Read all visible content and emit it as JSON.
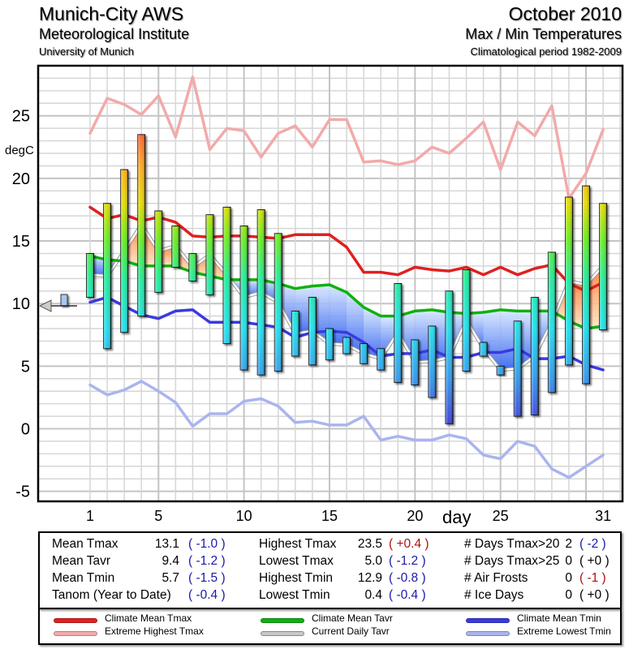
{
  "header": {
    "station": "Munich-City AWS",
    "institute": "Meteorological Institute",
    "university": "University of Munich",
    "month": "October 2010",
    "subtitle": "Max / Min Temperatures",
    "period": "Climatological period 1982-2009"
  },
  "chart_data": {
    "type": "bar",
    "title": "Max / Min Temperatures",
    "xlabel": "day",
    "ylabel": "degC",
    "xlim": [
      -1.5,
      32
    ],
    "ylim": [
      -5.8,
      29
    ],
    "x_ticks": [
      1,
      5,
      10,
      15,
      20,
      25,
      31
    ],
    "y_ticks": [
      -5,
      0,
      5,
      10,
      15,
      20,
      25
    ],
    "grid": true,
    "days": [
      1,
      2,
      3,
      4,
      5,
      6,
      7,
      8,
      9,
      10,
      11,
      12,
      13,
      14,
      15,
      16,
      17,
      18,
      19,
      20,
      21,
      22,
      23,
      24,
      25,
      26,
      27,
      28,
      29,
      30,
      31
    ],
    "daily_tmax": [
      14.0,
      18.0,
      20.7,
      23.5,
      17.4,
      16.2,
      14.0,
      17.1,
      17.7,
      16.2,
      17.5,
      15.6,
      9.4,
      10.5,
      8.0,
      7.3,
      6.8,
      6.4,
      11.6,
      7.1,
      8.2,
      11.0,
      12.7,
      6.9,
      5.0,
      8.6,
      10.5,
      14.1,
      18.5,
      19.4,
      18.0
    ],
    "daily_tmin": [
      10.5,
      6.4,
      7.7,
      9.0,
      10.9,
      12.9,
      11.8,
      10.7,
      6.8,
      4.7,
      4.3,
      4.6,
      5.8,
      5.1,
      5.5,
      6.0,
      5.2,
      4.7,
      3.7,
      3.5,
      2.5,
      0.4,
      4.6,
      5.8,
      4.3,
      1.0,
      1.1,
      2.9,
      5.1,
      3.6,
      7.9
    ],
    "series": [
      {
        "name": "Climate Mean Tmax",
        "color": "#e02020",
        "values": [
          17.7,
          16.8,
          17.1,
          16.6,
          16.9,
          16.5,
          15.4,
          15.3,
          15.4,
          15.4,
          15.3,
          15.2,
          15.5,
          15.5,
          15.5,
          14.5,
          12.5,
          12.5,
          12.3,
          12.9,
          12.7,
          12.6,
          12.9,
          12.3,
          12.9,
          12.3,
          12.8,
          13.1,
          11.6,
          11.0,
          11.7
        ]
      },
      {
        "name": "Extreme Highest Tmax",
        "color": "#f2aaaa",
        "values": [
          23.6,
          26.4,
          25.9,
          25.1,
          26.6,
          23.3,
          28.1,
          22.3,
          24.0,
          23.8,
          21.7,
          23.6,
          24.2,
          22.5,
          24.7,
          24.7,
          21.3,
          21.4,
          21.1,
          21.4,
          22.5,
          22.0,
          23.2,
          24.5,
          20.7,
          24.5,
          23.4,
          25.8,
          18.4,
          20.4,
          23.9
        ]
      },
      {
        "name": "Climate Mean Tavr",
        "color": "#10b010",
        "values": [
          13.8,
          13.5,
          13.4,
          13.0,
          13.0,
          13.0,
          12.5,
          12.2,
          11.9,
          11.9,
          11.9,
          11.6,
          11.2,
          11.4,
          11.5,
          10.9,
          9.7,
          9.0,
          9.0,
          9.4,
          9.5,
          9.3,
          9.2,
          9.3,
          9.5,
          9.4,
          9.4,
          9.4,
          8.6,
          8.0,
          8.2
        ]
      },
      {
        "name": "Current Daily Tavr",
        "color": "#b0b0b0",
        "values": [
          12.3,
          12.2,
          14.2,
          16.3,
          14.2,
          14.6,
          12.9,
          13.9,
          12.3,
          10.5,
          10.9,
          10.1,
          7.6,
          7.8,
          6.8,
          6.7,
          6.0,
          5.6,
          7.7,
          5.3,
          5.4,
          5.7,
          8.7,
          6.4,
          4.7,
          4.8,
          5.8,
          8.5,
          11.8,
          11.5,
          13.0
        ]
      },
      {
        "name": "Climate Mean Tmin",
        "color": "#3a3ae0",
        "values": [
          10.1,
          10.5,
          9.8,
          9.1,
          8.8,
          9.4,
          9.5,
          8.5,
          8.5,
          8.5,
          8.3,
          8.1,
          7.3,
          7.7,
          7.8,
          7.7,
          6.9,
          5.8,
          6.0,
          6.0,
          6.3,
          5.7,
          5.7,
          6.1,
          6.1,
          6.4,
          5.6,
          5.6,
          5.8,
          5.1,
          4.7
        ]
      },
      {
        "name": "Extreme Lowest Tmin",
        "color": "#aab4ee",
        "values": [
          3.5,
          2.7,
          3.1,
          3.8,
          3.0,
          2.1,
          0.2,
          1.2,
          1.2,
          2.2,
          2.4,
          1.8,
          0.5,
          0.6,
          0.3,
          0.3,
          1.0,
          -0.9,
          -0.6,
          -0.9,
          -0.9,
          -0.5,
          -0.8,
          -2.1,
          -2.4,
          -1.0,
          -1.4,
          -3.2,
          -3.9,
          -3.0,
          -2.1
        ]
      }
    ],
    "tanom_marker": -0.4
  },
  "axis": {
    "ylabel": "degC",
    "xlabel": "day",
    "yticks": [
      "25",
      "20",
      "15",
      "10",
      "5",
      "0",
      "-5"
    ],
    "xticks": [
      "1",
      "5",
      "10",
      "15",
      "20",
      "25",
      "31"
    ]
  },
  "stats": {
    "col1": [
      {
        "label": "Mean Tmax",
        "value": "13.1",
        "anom": "( -1.0 )",
        "anom_color": "blue"
      },
      {
        "label": "Mean Tavr",
        "value": "9.4",
        "anom": "( -1.2 )",
        "anom_color": "blue"
      },
      {
        "label": "Mean Tmin",
        "value": "5.7",
        "anom": "( -1.5 )",
        "anom_color": "blue"
      },
      {
        "label": "Tanom (Year to Date)",
        "value": "",
        "anom": "( -0.4 )",
        "anom_color": "blue"
      }
    ],
    "col2": [
      {
        "label": "Highest Tmax",
        "value": "23.5",
        "anom": "( +0.4 )",
        "anom_color": "red"
      },
      {
        "label": "Lowest Tmax",
        "value": "5.0",
        "anom": "( -1.2 )",
        "anom_color": "blue"
      },
      {
        "label": "Highest Tmin",
        "value": "12.9",
        "anom": "( -0.8 )",
        "anom_color": "blue"
      },
      {
        "label": "Lowest Tmin",
        "value": "0.4",
        "anom": "( -0.4 )",
        "anom_color": "blue"
      }
    ],
    "col3": [
      {
        "label": "# Days Tmax>20",
        "value": "2",
        "anom": "( -2 )",
        "anom_color": "blue"
      },
      {
        "label": "# Days Tmax>25",
        "value": "0",
        "anom": "( +0 )",
        "anom_color": "blk"
      },
      {
        "label": "# Air Frosts",
        "value": "0",
        "anom": "( -1 )",
        "anom_color": "red"
      },
      {
        "label": "# Ice Days",
        "value": "0",
        "anom": "( +0 )",
        "anom_color": "blk"
      }
    ]
  },
  "legend": [
    {
      "label": "Climate Mean Tmax",
      "color": "#e02020"
    },
    {
      "label": "Extreme Highest Tmax",
      "color": "#f2aaaa"
    },
    {
      "label": "Climate Mean Tavr",
      "color": "#10b010"
    },
    {
      "label": "Current Daily Tavr",
      "color": "#c8c8c8"
    },
    {
      "label": "Climate Mean Tmin",
      "color": "#3a3ae0"
    },
    {
      "label": "Extreme Lowest Tmin",
      "color": "#aab4ee"
    }
  ]
}
